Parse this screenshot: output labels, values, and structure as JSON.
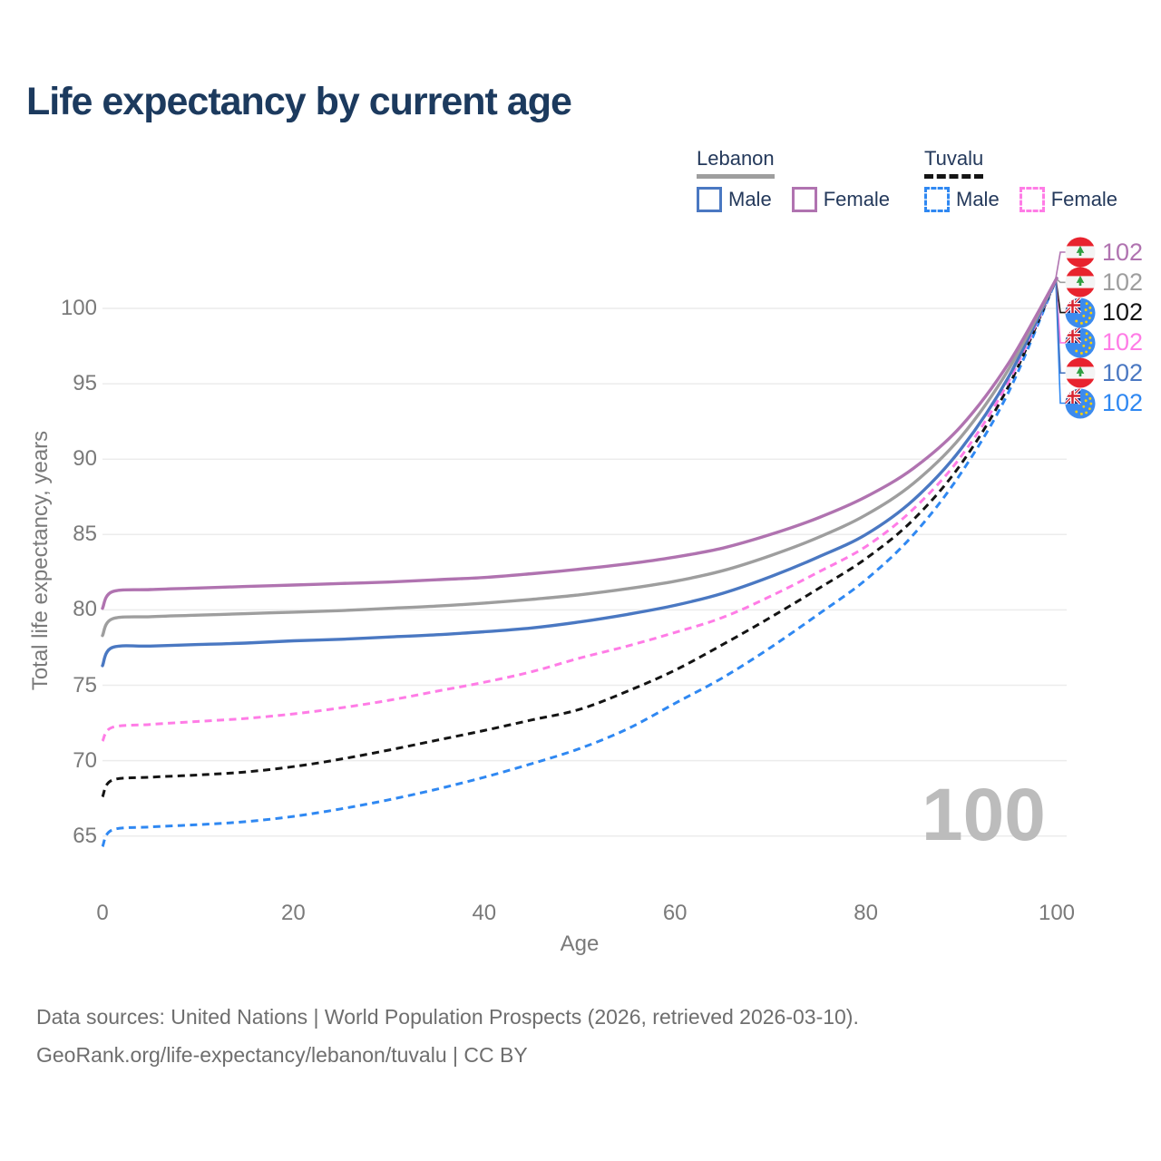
{
  "title": "Life expectancy by current age",
  "watermark": "100",
  "colors": {
    "title_text": "#1c3a5e",
    "legend_text": "#24395b",
    "axis_text": "#7a7a7a",
    "gridline": "#ececec",
    "watermark": "#bcbcbc",
    "footer_text": "#6e6e6e",
    "lebanon_male": "#4a78c2",
    "lebanon_female": "#b073b0",
    "lebanon_all": "#9e9e9e",
    "tuvalu_male": "#2f88f2",
    "tuvalu_female": "#ff7ce6",
    "tuvalu_all": "#141414"
  },
  "legend": {
    "groups": [
      {
        "country": "Lebanon",
        "style": "solid",
        "underline_color": "#9e9e9e",
        "items": [
          {
            "label": "Male",
            "color": "#4a78c2",
            "dashed": false
          },
          {
            "label": "Female",
            "color": "#b073b0",
            "dashed": false
          }
        ]
      },
      {
        "country": "Tuvalu",
        "style": "dashed",
        "underline_color": "#141414",
        "items": [
          {
            "label": "Male",
            "color": "#2f88f2",
            "dashed": true
          },
          {
            "label": "Female",
            "color": "#ff7ce6",
            "dashed": true
          }
        ]
      }
    ]
  },
  "chart_data": {
    "type": "line",
    "title": "Life expectancy by current age",
    "xlabel": "Age",
    "ylabel": "Total life expectancy, years",
    "x_ticks": [
      0,
      20,
      40,
      60,
      80,
      100
    ],
    "y_ticks": [
      65,
      70,
      75,
      80,
      85,
      90,
      95,
      100
    ],
    "xlim": [
      0,
      100
    ],
    "ylim": [
      63,
      104
    ],
    "grid": "horizontal",
    "legend_position": "top-right",
    "series": [
      {
        "name": "Tuvalu Male",
        "country": "tuvalu",
        "sex": "male",
        "color": "#2f88f2",
        "dashed": true,
        "end_value": "102",
        "label_row": 5,
        "points": [
          [
            0,
            64.3
          ],
          [
            1,
            65.4
          ],
          [
            5,
            65.6
          ],
          [
            10,
            65.75
          ],
          [
            15,
            65.95
          ],
          [
            20,
            66.3
          ],
          [
            25,
            66.8
          ],
          [
            30,
            67.4
          ],
          [
            35,
            68.1
          ],
          [
            40,
            68.9
          ],
          [
            45,
            69.8
          ],
          [
            50,
            70.8
          ],
          [
            55,
            72.1
          ],
          [
            60,
            73.8
          ],
          [
            65,
            75.5
          ],
          [
            70,
            77.5
          ],
          [
            75,
            79.7
          ],
          [
            80,
            82.0
          ],
          [
            85,
            85.0
          ],
          [
            90,
            89.1
          ],
          [
            95,
            94.5
          ],
          [
            100,
            102
          ]
        ]
      },
      {
        "name": "Tuvalu",
        "country": "tuvalu",
        "sex": "all",
        "color": "#141414",
        "dashed": true,
        "end_value": "102",
        "label_row": 2,
        "points": [
          [
            0,
            67.6
          ],
          [
            1,
            68.7
          ],
          [
            5,
            68.9
          ],
          [
            10,
            69.05
          ],
          [
            15,
            69.25
          ],
          [
            20,
            69.6
          ],
          [
            25,
            70.1
          ],
          [
            30,
            70.7
          ],
          [
            35,
            71.35
          ],
          [
            40,
            72.0
          ],
          [
            45,
            72.7
          ],
          [
            50,
            73.4
          ],
          [
            55,
            74.6
          ],
          [
            60,
            76.0
          ],
          [
            65,
            77.7
          ],
          [
            70,
            79.5
          ],
          [
            75,
            81.4
          ],
          [
            80,
            83.4
          ],
          [
            85,
            86.0
          ],
          [
            90,
            89.7
          ],
          [
            95,
            94.9
          ],
          [
            100,
            102
          ]
        ]
      },
      {
        "name": "Tuvalu Female",
        "country": "tuvalu",
        "sex": "female",
        "color": "#ff7ce6",
        "dashed": true,
        "end_value": "102",
        "label_row": 3,
        "points": [
          [
            0,
            71.3
          ],
          [
            1,
            72.2
          ],
          [
            5,
            72.4
          ],
          [
            10,
            72.6
          ],
          [
            15,
            72.8
          ],
          [
            20,
            73.1
          ],
          [
            25,
            73.5
          ],
          [
            30,
            74.0
          ],
          [
            35,
            74.6
          ],
          [
            40,
            75.2
          ],
          [
            45,
            75.9
          ],
          [
            50,
            76.8
          ],
          [
            55,
            77.6
          ],
          [
            60,
            78.5
          ],
          [
            65,
            79.5
          ],
          [
            70,
            80.9
          ],
          [
            75,
            82.5
          ],
          [
            80,
            84.2
          ],
          [
            85,
            86.7
          ],
          [
            90,
            90.2
          ],
          [
            95,
            95.2
          ],
          [
            100,
            102
          ]
        ]
      },
      {
        "name": "Lebanon Male",
        "country": "lebanon",
        "sex": "male",
        "color": "#4a78c2",
        "dashed": false,
        "end_value": "102",
        "label_row": 4,
        "points": [
          [
            0,
            76.3
          ],
          [
            1,
            77.5
          ],
          [
            5,
            77.6
          ],
          [
            10,
            77.7
          ],
          [
            15,
            77.8
          ],
          [
            20,
            77.95
          ],
          [
            25,
            78.05
          ],
          [
            30,
            78.2
          ],
          [
            35,
            78.35
          ],
          [
            40,
            78.55
          ],
          [
            45,
            78.8
          ],
          [
            50,
            79.2
          ],
          [
            55,
            79.7
          ],
          [
            60,
            80.3
          ],
          [
            65,
            81.1
          ],
          [
            70,
            82.2
          ],
          [
            75,
            83.5
          ],
          [
            80,
            85.0
          ],
          [
            85,
            87.3
          ],
          [
            90,
            90.7
          ],
          [
            95,
            95.5
          ],
          [
            100,
            102
          ]
        ]
      },
      {
        "name": "Lebanon",
        "country": "lebanon",
        "sex": "all",
        "color": "#9e9e9e",
        "dashed": false,
        "end_value": "102",
        "label_row": 1,
        "points": [
          [
            0,
            78.3
          ],
          [
            1,
            79.4
          ],
          [
            5,
            79.55
          ],
          [
            10,
            79.65
          ],
          [
            15,
            79.75
          ],
          [
            20,
            79.85
          ],
          [
            25,
            79.95
          ],
          [
            30,
            80.1
          ],
          [
            35,
            80.25
          ],
          [
            40,
            80.45
          ],
          [
            45,
            80.7
          ],
          [
            50,
            81.0
          ],
          [
            55,
            81.4
          ],
          [
            60,
            81.9
          ],
          [
            65,
            82.6
          ],
          [
            70,
            83.6
          ],
          [
            75,
            84.8
          ],
          [
            80,
            86.3
          ],
          [
            85,
            88.4
          ],
          [
            90,
            91.5
          ],
          [
            95,
            96.0
          ],
          [
            100,
            102
          ]
        ]
      },
      {
        "name": "Lebanon Female",
        "country": "lebanon",
        "sex": "female",
        "color": "#b073b0",
        "dashed": false,
        "end_value": "102",
        "label_row": 0,
        "points": [
          [
            0,
            80.1
          ],
          [
            1,
            81.2
          ],
          [
            5,
            81.35
          ],
          [
            10,
            81.45
          ],
          [
            15,
            81.55
          ],
          [
            20,
            81.65
          ],
          [
            25,
            81.75
          ],
          [
            30,
            81.85
          ],
          [
            35,
            82.0
          ],
          [
            40,
            82.15
          ],
          [
            45,
            82.4
          ],
          [
            50,
            82.7
          ],
          [
            55,
            83.05
          ],
          [
            60,
            83.5
          ],
          [
            65,
            84.1
          ],
          [
            70,
            85.0
          ],
          [
            75,
            86.1
          ],
          [
            80,
            87.5
          ],
          [
            85,
            89.4
          ],
          [
            90,
            92.2
          ],
          [
            95,
            96.4
          ],
          [
            100,
            102
          ]
        ]
      }
    ]
  },
  "footer": {
    "line1": "Data sources: United Nations | World Population Prospects (2026, retrieved 2026-03-10).",
    "line2": "GeoRank.org/life-expectancy/lebanon/tuvalu | CC BY"
  }
}
